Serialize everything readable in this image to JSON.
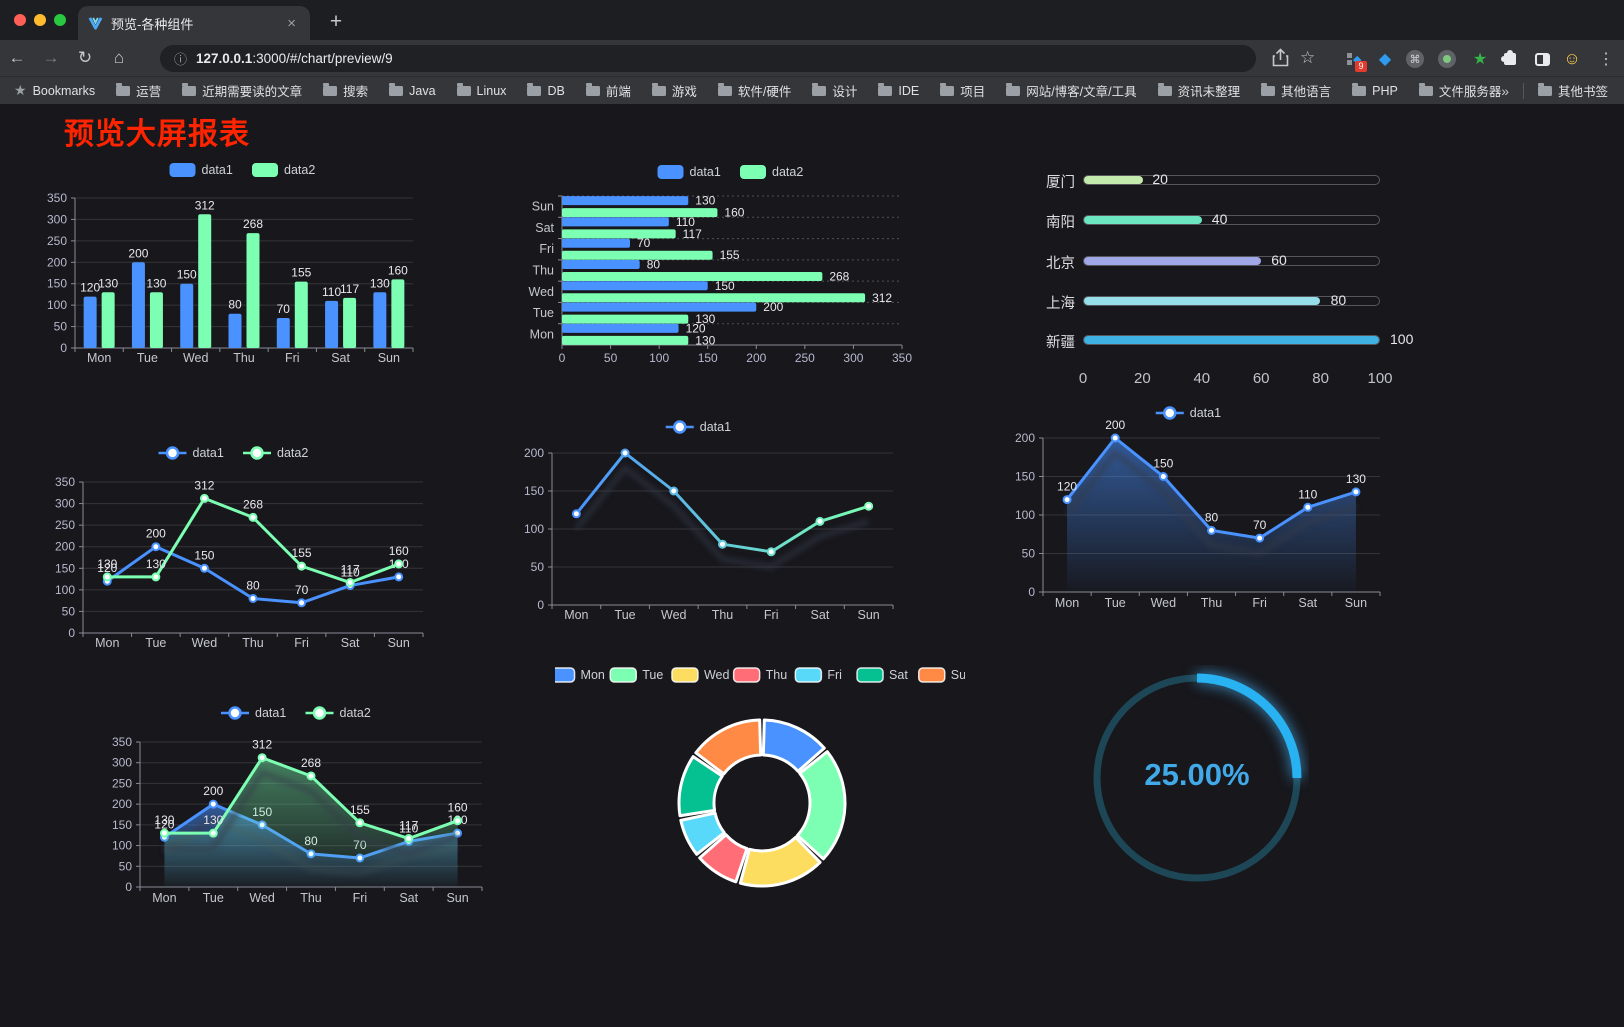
{
  "browser": {
    "tab_title": "预览-各种组件",
    "url": {
      "host": "127.0.0.1",
      "rest": ":3000/#/chart/preview/9"
    },
    "extension_badge": "9",
    "icons": {
      "close": "×",
      "new_tab": "+",
      "back": "←",
      "forward": "→",
      "reload": "↻",
      "home": "⌂",
      "info": "ⓘ",
      "star": "☆",
      "menu": "⋮",
      "command": "⌘",
      "green_star": "★",
      "emoji": "☺",
      "overflow": "»",
      "bookmarks_star": "★"
    },
    "bookmarks_bar": {
      "first": "Bookmarks",
      "folders": [
        "运营",
        "近期需要读的文章",
        "搜索",
        "Java",
        "Linux",
        "DB",
        "前端",
        "游戏",
        "软件/硬件",
        "设计",
        "IDE",
        "项目",
        "网站/博客/文章/工具",
        "资讯未整理",
        "其他语言",
        "PHP",
        "文件服务器"
      ],
      "other": "其他书签"
    }
  },
  "page": {
    "title": "预览大屏报表",
    "title_color": "#ff2400"
  },
  "theme": {
    "background": "#17171c",
    "axis_text": "#b9b8ce",
    "value_label": "#e8e8ee",
    "legend_text": "#d0d1d9",
    "grid": "rgba(255,255,255,0.13)",
    "axis_line": "#8b8b96"
  },
  "chart_data": [
    {
      "name": "grouped-bar",
      "type": "bar",
      "categories": [
        "Mon",
        "Tue",
        "Wed",
        "Thu",
        "Fri",
        "Sat",
        "Sun"
      ],
      "series": [
        {
          "name": "data1",
          "color": "#4992ff",
          "values": [
            120,
            200,
            150,
            80,
            70,
            110,
            130
          ]
        },
        {
          "name": "data2",
          "color": "#7cffb2",
          "values": [
            130,
            130,
            312,
            268,
            155,
            117,
            160
          ]
        }
      ],
      "ylim": [
        0,
        350
      ],
      "yticks": [
        0,
        50,
        100,
        150,
        200,
        250,
        300,
        350
      ],
      "legend_position": "top",
      "show_labels": true
    },
    {
      "name": "horizontal-bar",
      "type": "bar-horizontal",
      "categories": [
        "Mon",
        "Tue",
        "Wed",
        "Thu",
        "Fri",
        "Sat",
        "Sun"
      ],
      "category_order_top_to_bottom": [
        "Sun",
        "Sat",
        "Fri",
        "Thu",
        "Wed",
        "Tue",
        "Mon"
      ],
      "series": [
        {
          "name": "data1",
          "color": "#4992ff",
          "values": [
            120,
            200,
            150,
            80,
            70,
            110,
            130
          ]
        },
        {
          "name": "data2",
          "color": "#7cffb2",
          "values": [
            130,
            130,
            312,
            268,
            155,
            117,
            160
          ]
        }
      ],
      "xlim": [
        0,
        350
      ],
      "xticks": [
        0,
        50,
        100,
        150,
        200,
        250,
        300,
        350
      ],
      "legend_position": "top",
      "show_labels": true
    },
    {
      "name": "city-progress",
      "type": "progress",
      "max": 100,
      "items": [
        {
          "label": "厦门",
          "value": 20,
          "color": "#c4ebad"
        },
        {
          "label": "南阳",
          "value": 40,
          "color": "#6be6c1"
        },
        {
          "label": "北京",
          "value": 60,
          "color": "#a0a7e6"
        },
        {
          "label": "上海",
          "value": 80,
          "color": "#96dee8"
        },
        {
          "label": "新疆",
          "value": 100,
          "color": "#3fb1e3"
        }
      ],
      "xticks": [
        0,
        20,
        40,
        60,
        80,
        100
      ]
    },
    {
      "name": "dual-line",
      "type": "line",
      "categories": [
        "Mon",
        "Tue",
        "Wed",
        "Thu",
        "Fri",
        "Sat",
        "Sun"
      ],
      "series": [
        {
          "name": "data1",
          "color": "#4992ff",
          "values": [
            120,
            200,
            150,
            80,
            70,
            110,
            130
          ]
        },
        {
          "name": "data2",
          "color": "#7cffb2",
          "values": [
            130,
            130,
            312,
            268,
            155,
            117,
            160
          ]
        }
      ],
      "ylim": [
        0,
        350
      ],
      "yticks": [
        0,
        50,
        100,
        150,
        200,
        250,
        300,
        350
      ],
      "show_labels": true
    },
    {
      "name": "gradient-line",
      "type": "line",
      "categories": [
        "Mon",
        "Tue",
        "Wed",
        "Thu",
        "Fri",
        "Sat",
        "Sun"
      ],
      "series": [
        {
          "name": "data1",
          "gradient": [
            "#4992ff",
            "#7cffb2"
          ],
          "values": [
            120,
            200,
            150,
            80,
            70,
            110,
            130
          ]
        }
      ],
      "ylim": [
        0,
        200
      ],
      "yticks": [
        0,
        50,
        100,
        150,
        200
      ],
      "show_labels": false,
      "shadow": true
    },
    {
      "name": "area-line",
      "type": "line",
      "categories": [
        "Mon",
        "Tue",
        "Wed",
        "Thu",
        "Fri",
        "Sat",
        "Sun"
      ],
      "series": [
        {
          "name": "data1",
          "color": "#4992ff",
          "area": true,
          "values": [
            120,
            200,
            150,
            80,
            70,
            110,
            130
          ]
        }
      ],
      "ylim": [
        0,
        200
      ],
      "yticks": [
        0,
        50,
        100,
        150,
        200
      ],
      "show_labels": true,
      "shadow": true
    },
    {
      "name": "dual-area-line",
      "type": "line",
      "categories": [
        "Mon",
        "Tue",
        "Wed",
        "Thu",
        "Fri",
        "Sat",
        "Sun"
      ],
      "series": [
        {
          "name": "data1",
          "color": "#4992ff",
          "area": true,
          "values": [
            120,
            200,
            150,
            80,
            70,
            110,
            130
          ]
        },
        {
          "name": "data2",
          "color": "#7cffb2",
          "area": true,
          "values": [
            130,
            130,
            312,
            268,
            155,
            117,
            160
          ]
        }
      ],
      "ylim": [
        0,
        350
      ],
      "yticks": [
        0,
        50,
        100,
        150,
        200,
        250,
        300,
        350
      ],
      "show_labels": true,
      "shadow": true
    },
    {
      "name": "week-donut",
      "type": "donut",
      "legend": [
        "Mon",
        "Tue",
        "Wed",
        "Thu",
        "Fri",
        "Sat",
        "Sun"
      ],
      "values": [
        120,
        200,
        150,
        80,
        70,
        110,
        130
      ],
      "colors": [
        "#4992ff",
        "#7cffb2",
        "#fddd60",
        "#ff6e76",
        "#58d9f9",
        "#05c091",
        "#ff8a45"
      ]
    },
    {
      "name": "percent-gauge",
      "type": "gauge",
      "value": 25,
      "display": "25.00%",
      "color": "#28b2f2",
      "track_color": "#1d4756",
      "text_color": "#41a9e8"
    }
  ]
}
